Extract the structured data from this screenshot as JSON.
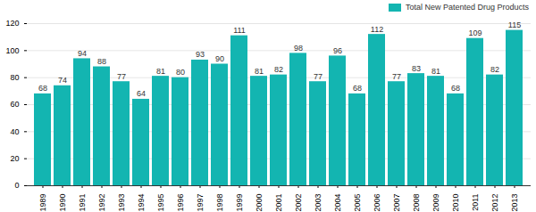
{
  "chart_data": {
    "type": "bar",
    "categories": [
      "1989",
      "1990",
      "1991",
      "1992",
      "1993",
      "1994",
      "1995",
      "1996",
      "1997",
      "1998",
      "1999",
      "2000",
      "2001",
      "2002",
      "2003",
      "2004",
      "2005",
      "2006",
      "2007",
      "2008",
      "2009",
      "2010",
      "2011",
      "2012",
      "2013"
    ],
    "series": [
      {
        "name": "Total New Patented Drug Products",
        "color": "#13b5b1",
        "values": [
          68,
          74,
          94,
          88,
          77,
          64,
          81,
          80,
          93,
          90,
          111,
          81,
          82,
          98,
          77,
          96,
          68,
          112,
          77,
          83,
          81,
          68,
          109,
          82,
          115
        ]
      }
    ],
    "ylim": [
      0,
      120
    ],
    "yticks": [
      0,
      20,
      40,
      60,
      80,
      100,
      120
    ],
    "grid": true,
    "legend": "top-right",
    "data_labels": true
  }
}
